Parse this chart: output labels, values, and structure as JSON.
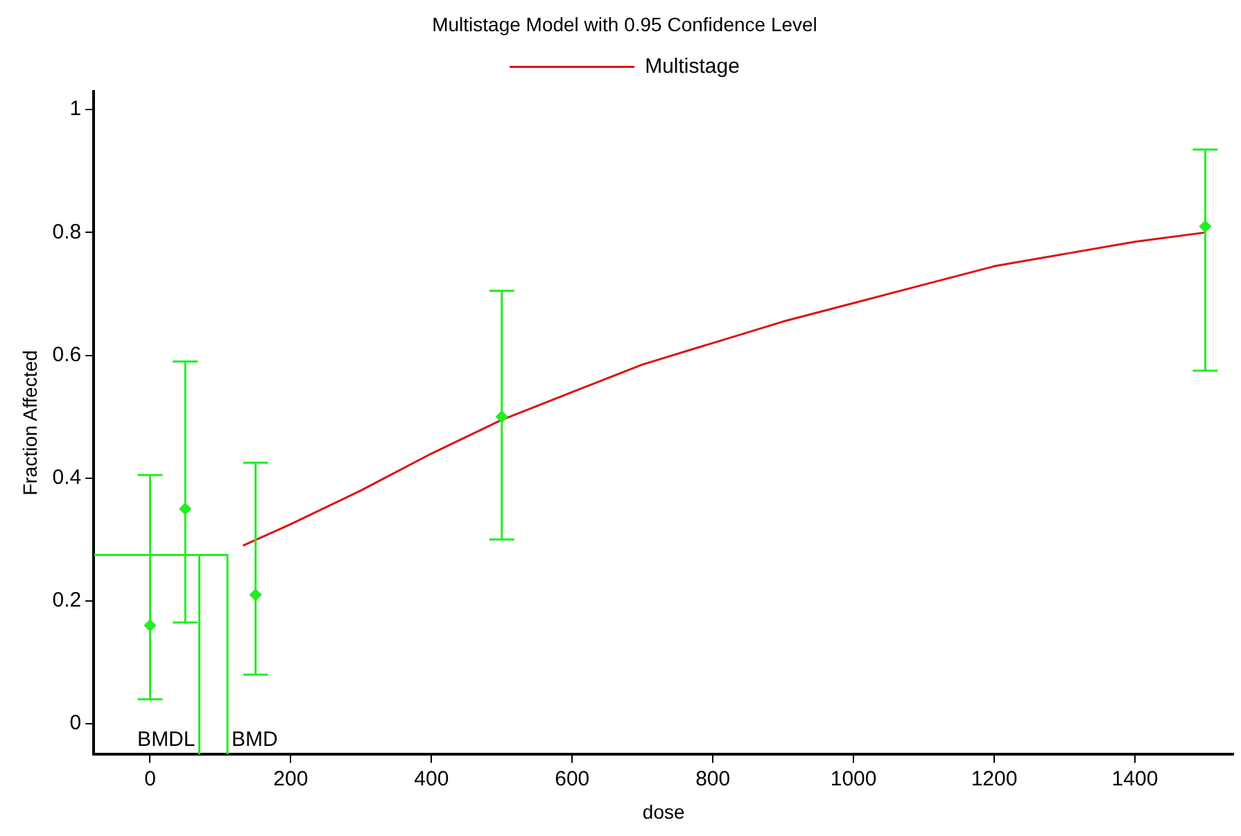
{
  "chart_data": {
    "type": "scatter",
    "title": "Multistage Model with 0.95 Confidence Level",
    "xlabel": "dose",
    "ylabel": "Fraction Affected",
    "xlim": [
      -80,
      1540
    ],
    "ylim": [
      -0.05,
      1.03
    ],
    "xticks": [
      0,
      200,
      400,
      600,
      800,
      1000,
      1200,
      1400
    ],
    "yticks": [
      0,
      0.2,
      0.4,
      0.6,
      0.8,
      1
    ],
    "grid": false,
    "legend": "top",
    "marker": "diamond",
    "series": [
      {
        "color": "#22ee22",
        "x": [
          0,
          50,
          150,
          500,
          1500
        ],
        "values": [
          0.16,
          0.35,
          0.21,
          0.5,
          0.81
        ],
        "errors": [
          [
            0.04,
            0.405
          ],
          [
            0.165,
            0.59
          ],
          [
            0.08,
            0.425
          ],
          [
            0.3,
            0.705
          ],
          [
            0.575,
            0.935
          ]
        ]
      },
      {
        "type": "line",
        "name": "Multistage",
        "color": "#dd1111",
        "marker": "none",
        "x": [
          132,
          200,
          300,
          400,
          500,
          600,
          700,
          800,
          900,
          1000,
          1100,
          1200,
          1300,
          1400,
          1500
        ],
        "values": [
          0.29,
          0.325,
          0.38,
          0.44,
          0.495,
          0.54,
          0.585,
          0.62,
          0.655,
          0.685,
          0.715,
          0.745,
          0.765,
          0.785,
          0.8
        ]
      },
      {
        "type": "line",
        "color": "#22ee22",
        "marker": "none",
        "x": [
          -80,
          110,
          110
        ],
        "values": [
          0.275,
          0.275,
          -0.05
        ]
      },
      {
        "type": "line",
        "color": "#22ee22",
        "marker": "none",
        "x": [
          70,
          70
        ],
        "values": [
          0.275,
          -0.05
        ]
      }
    ],
    "annotations": [
      "BMDL",
      "BMD"
    ]
  }
}
